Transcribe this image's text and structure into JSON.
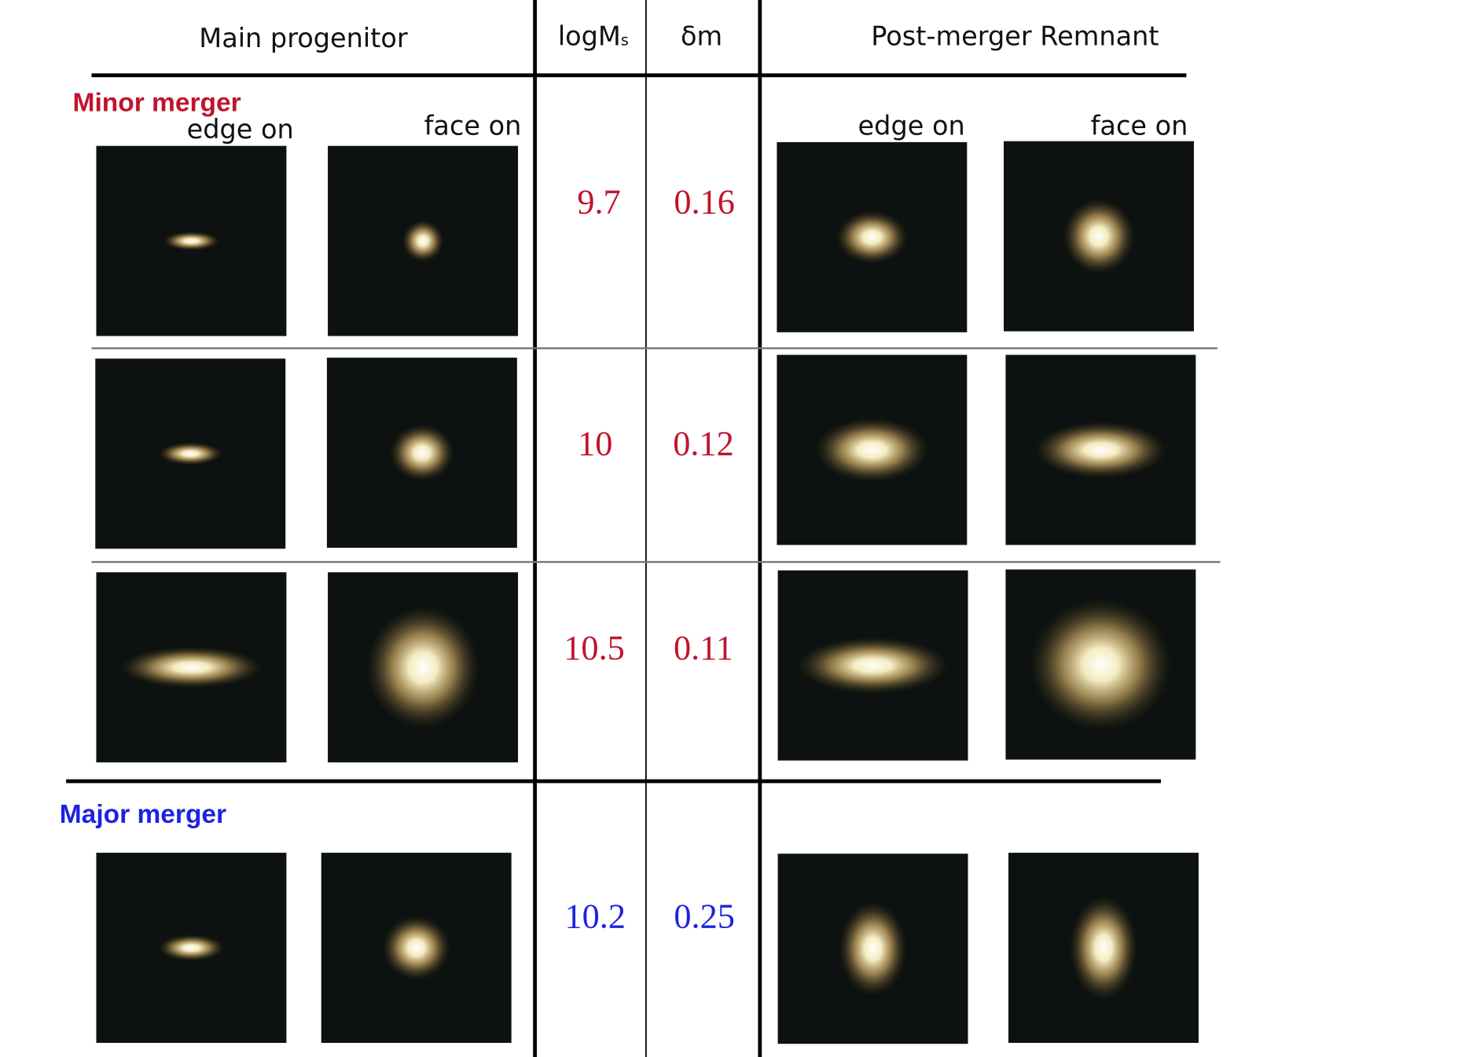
{
  "columns": {
    "progenitor": "Main progenitor",
    "logms": {
      "text": "logM",
      "subscript": "s"
    },
    "dm": "δm",
    "remnant": "Post-merger Remnant"
  },
  "view_labels": [
    "edge on",
    "face on",
    "edge on",
    "face on"
  ],
  "sections": [
    {
      "label": "Minor merger",
      "rows": [
        {
          "logMs": "9.7",
          "dm": "0.16"
        },
        {
          "logMs": "10",
          "dm": "0.12"
        },
        {
          "logMs": "10.5",
          "dm": "0.11"
        }
      ]
    },
    {
      "label": "Major merger",
      "rows": [
        {
          "logMs": "10.2",
          "dm": "0.25"
        }
      ]
    }
  ]
}
